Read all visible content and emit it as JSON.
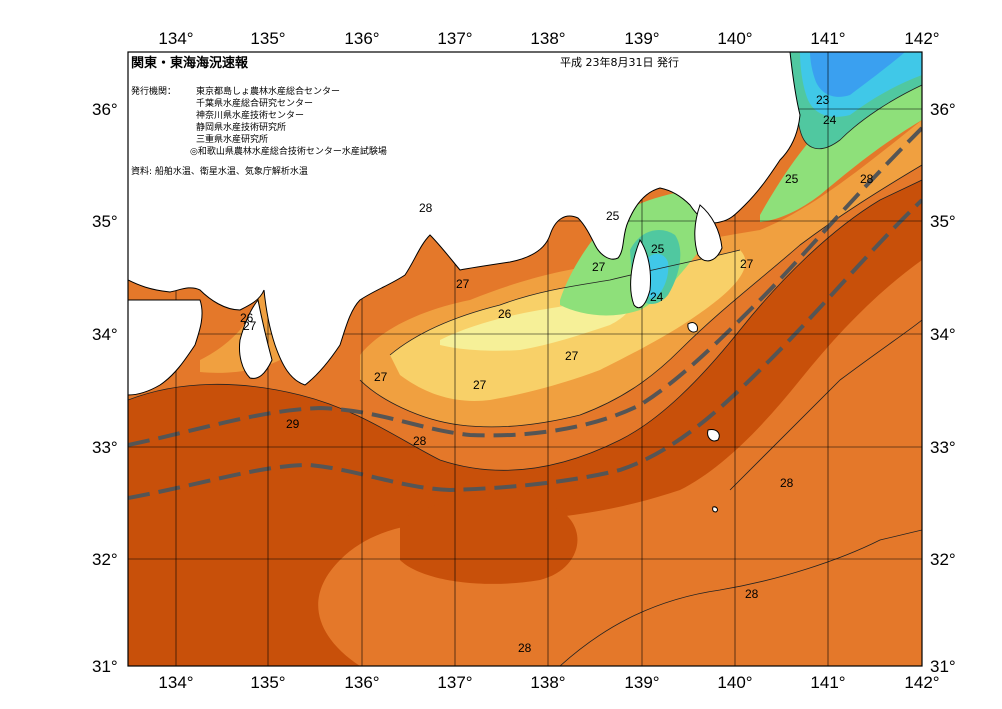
{
  "header": {
    "title": "関東・東海海況速報",
    "date": "平成 23年8月31日 発行",
    "issuer_label": "発行機関：",
    "issuers": [
      "東京都島しょ農林水産総合センター",
      "千葉県水産総合研究センター",
      "神奈川県水産技術センター",
      "静岡県水産技術研究所",
      "三重県水産研究所",
      "◎和歌山県農林水産総合技術センター水産試験場"
    ],
    "source": "資料: 船舶水温、衛星水温、気象庁解析水温"
  },
  "axes": {
    "lon_ticks": [
      "134°",
      "135°",
      "136°",
      "137°",
      "138°",
      "139°",
      "140°",
      "141°",
      "142°"
    ],
    "lat_ticks": [
      "36°",
      "35°",
      "34°",
      "33°",
      "32°",
      "31°"
    ]
  },
  "contour_labels": {
    "c23": "23",
    "c24a": "24",
    "c24b": "24",
    "c25a": "25",
    "c25b": "25",
    "c25c": "25",
    "c26a": "26",
    "c26b": "26",
    "c27a": "27",
    "c27b": "27",
    "c27c": "27",
    "c27d": "27",
    "c27e": "27",
    "c27f": "27",
    "c27g": "27",
    "c28a": "28",
    "c28b": "28",
    "c28c": "28",
    "c28d": "28",
    "c28e": "28",
    "c28f": "28",
    "c29": "29"
  },
  "colors": {
    "t29": "#c8500a",
    "t28": "#e4782a",
    "t27": "#f0a040",
    "t26": "#f8d068",
    "t25": "#f6f098",
    "t24": "#8ee07a",
    "t23": "#50c8a0",
    "t22": "#40c8e8",
    "t21": "#3aa0f0",
    "kuroshio": "#555555"
  }
}
